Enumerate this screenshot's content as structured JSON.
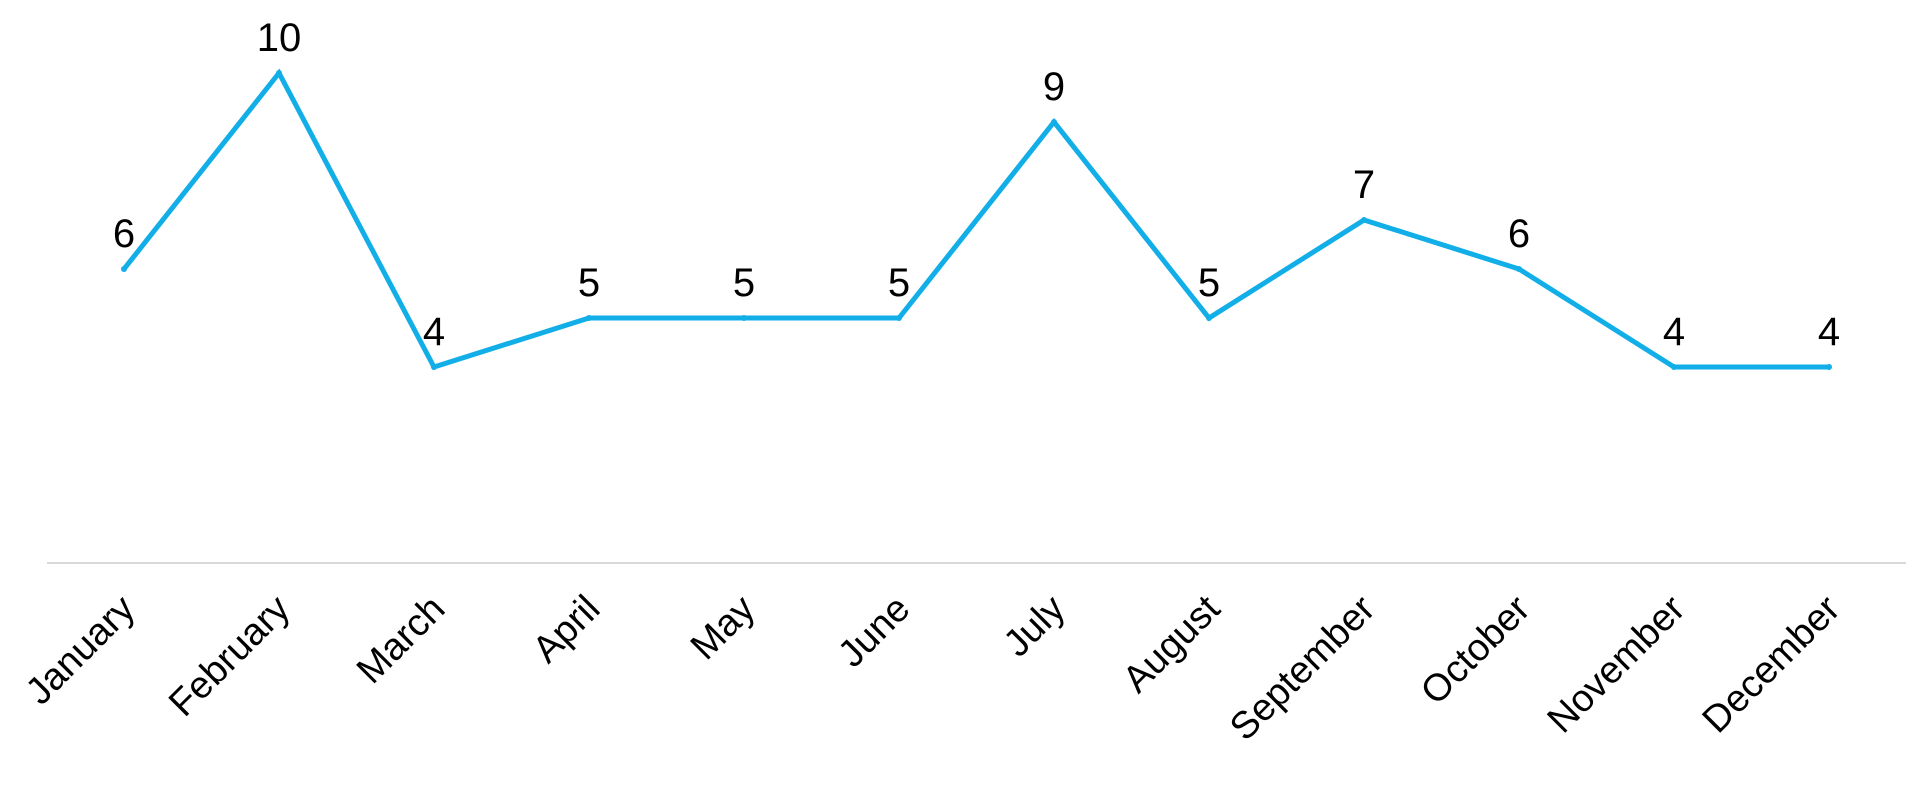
{
  "chart_data": {
    "type": "line",
    "title": "",
    "xlabel": "",
    "ylabel": "",
    "categories": [
      "January",
      "February",
      "March",
      "April",
      "May",
      "June",
      "July",
      "August",
      "September",
      "October",
      "November",
      "December"
    ],
    "series": [
      {
        "values": [
          6,
          10,
          4,
          5,
          5,
          5,
          9,
          5,
          7,
          6,
          4,
          4
        ],
        "color": "#12aee8"
      }
    ],
    "ylim": [
      0,
      11.5
    ],
    "grid": false,
    "legend": "none",
    "data_labels": true,
    "axis_color": "#d9d9d9"
  }
}
